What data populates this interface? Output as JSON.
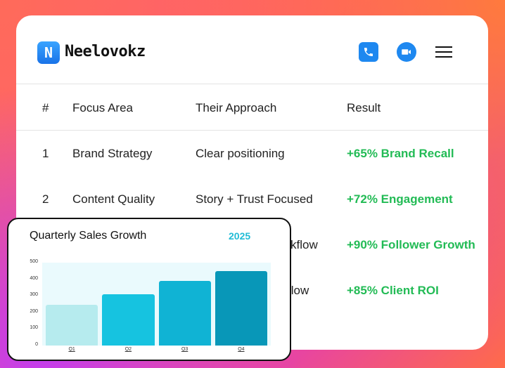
{
  "brand": {
    "logo_letter": "N",
    "name": "Neelovokz"
  },
  "header_icons": {
    "phone": "phone-icon",
    "video": "video-camera-icon",
    "menu": "hamburger-menu-icon",
    "accent": "#1e88f0"
  },
  "table": {
    "headers": [
      "#",
      "Focus Area",
      "Their Approach",
      "Result"
    ],
    "rows": [
      {
        "num": "1",
        "focus": "Brand Strategy",
        "approach": "Clear positioning",
        "result": "+65% Brand Recall"
      },
      {
        "num": "2",
        "focus": "Content Quality",
        "approach": "Story + Trust Focused",
        "result": "+72% Engagement"
      },
      {
        "num": "3",
        "focus": "",
        "approach": "kflow",
        "result": "+90% Follower Growth"
      },
      {
        "num": "4",
        "focus": "",
        "approach": "flow",
        "result": "+85% Client ROI"
      }
    ],
    "result_color": "#22bb55"
  },
  "chart_data": {
    "type": "bar",
    "title": "Quarterly Sales Growth",
    "subtitle": "2025",
    "categories": [
      "Q1",
      "Q2",
      "Q3",
      "Q4"
    ],
    "values": [
      245,
      310,
      390,
      450
    ],
    "ylim": [
      0,
      500
    ],
    "yticks": [
      "0",
      "100",
      "200",
      "300",
      "400",
      "500"
    ],
    "colors": [
      "#b6ebee",
      "#16c3e0",
      "#10b3d4",
      "#0897b8"
    ],
    "xlabel": "",
    "ylabel": ""
  }
}
